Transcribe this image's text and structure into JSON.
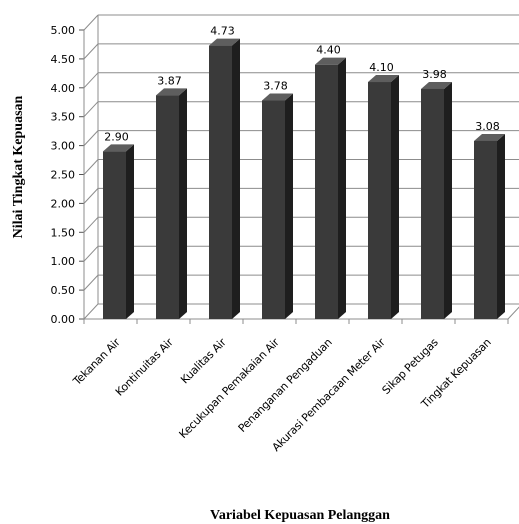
{
  "chart_data": {
    "type": "bar",
    "title": "",
    "xlabel": "Variabel Kepuasan Pelanggan",
    "ylabel": "Nilai Tingkat Kepuasan",
    "ylim": [
      0,
      5
    ],
    "y_ticks": [
      "0.00",
      "0.50",
      "1.00",
      "1.50",
      "2.00",
      "2.50",
      "3.00",
      "3.50",
      "4.00",
      "4.50",
      "5.00"
    ],
    "categories": [
      "Tekanan Air",
      "Kontinuitas Air",
      "Kualitas Air",
      "Kecukupan Pemakaian Air",
      "Penanganan Pengaduan",
      "Akurasi Pembacaan Meter Air",
      "Sikap Petugas",
      "Tingkat Kepuasan"
    ],
    "values": [
      2.9,
      3.87,
      4.73,
      3.78,
      4.4,
      4.1,
      3.98,
      3.08
    ],
    "value_labels": [
      "2.90",
      "3.87",
      "4.73",
      "3.78",
      "4.40",
      "4.10",
      "3.98",
      "3.08"
    ],
    "grid": true,
    "bar_color": "#3a3a3a",
    "style": "3d-column"
  }
}
